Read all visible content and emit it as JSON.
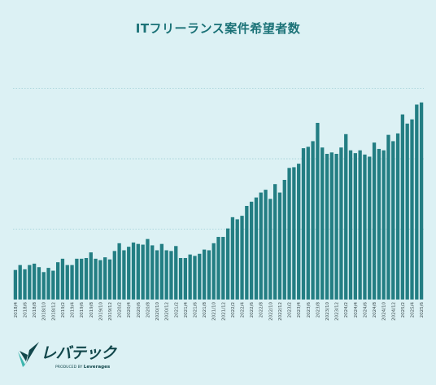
{
  "colors": {
    "background": "#dcf1f4",
    "bar": "#237e83",
    "title": "#1b7277",
    "grid": "#9ccdd3",
    "brand_dark": "#12474b",
    "brand_green": "#3db6ae"
  },
  "brand": {
    "name": "レバテック",
    "tagline_prefix": "PRODUCED BY",
    "tagline_company": "Leverages",
    "icon": "check-mark-logo-icon"
  },
  "chart_data": {
    "type": "bar",
    "title": "ITフリーランス案件希望者数",
    "xlabel": "",
    "ylabel": "",
    "ylim": [
      0,
      340
    ],
    "grid": true,
    "legend": "none",
    "x_tick_labels": [
      "2018/4",
      "2018/6",
      "2018/8",
      "2018/10",
      "2018/12",
      "2019/2",
      "2019/4",
      "2019/6",
      "2019/8",
      "2019/10",
      "2019/12",
      "2020/2",
      "2020/4",
      "2020/6",
      "2020/8",
      "2020/10",
      "2020/12",
      "2021/2",
      "2021/4",
      "2021/6",
      "2021/8",
      "2021/10",
      "2021/12",
      "2022/2",
      "2022/4",
      "2022/6",
      "2022/8",
      "2022/10",
      "2022/12",
      "2023/2",
      "2023/4",
      "2023/6",
      "2023/8",
      "2023/10",
      "2023/12",
      "2024/2",
      "2024/4",
      "2024/6",
      "2024/8",
      "2024/10",
      "2024/12",
      "2025/2",
      "2025/4",
      "2025/6"
    ],
    "categories": [
      "2018/4",
      "2018/5",
      "2018/6",
      "2018/7",
      "2018/8",
      "2018/9",
      "2018/10",
      "2018/11",
      "2018/12",
      "2019/1",
      "2019/2",
      "2019/3",
      "2019/4",
      "2019/5",
      "2019/6",
      "2019/7",
      "2019/8",
      "2019/9",
      "2019/10",
      "2019/11",
      "2019/12",
      "2020/1",
      "2020/2",
      "2020/3",
      "2020/4",
      "2020/5",
      "2020/6",
      "2020/7",
      "2020/8",
      "2020/9",
      "2020/10",
      "2020/11",
      "2020/12",
      "2021/1",
      "2021/2",
      "2021/3",
      "2021/4",
      "2021/5",
      "2021/6",
      "2021/7",
      "2021/8",
      "2021/9",
      "2021/10",
      "2021/11",
      "2021/12",
      "2022/1",
      "2022/2",
      "2022/3",
      "2022/4",
      "2022/5",
      "2022/6",
      "2022/7",
      "2022/8",
      "2022/9",
      "2022/10",
      "2022/11",
      "2022/12",
      "2023/1",
      "2023/2",
      "2023/3",
      "2023/4",
      "2023/5",
      "2023/6",
      "2023/7",
      "2023/8",
      "2023/9",
      "2023/10",
      "2023/11",
      "2023/12",
      "2024/1",
      "2024/2",
      "2024/3",
      "2024/4",
      "2024/5",
      "2024/6",
      "2024/7",
      "2024/8",
      "2024/9",
      "2024/10",
      "2024/11",
      "2024/12",
      "2025/1",
      "2025/2",
      "2025/3",
      "2025/4",
      "2025/5",
      "2025/6"
    ],
    "values": [
      42,
      49,
      43,
      49,
      51,
      46,
      39,
      45,
      41,
      53,
      58,
      49,
      49,
      58,
      58,
      59,
      67,
      58,
      56,
      60,
      57,
      69,
      80,
      70,
      75,
      81,
      79,
      78,
      86,
      77,
      70,
      79,
      70,
      69,
      76,
      59,
      59,
      64,
      62,
      65,
      71,
      70,
      80,
      89,
      89,
      101,
      117,
      114,
      119,
      133,
      139,
      145,
      152,
      156,
      143,
      164,
      152,
      170,
      187,
      188,
      193,
      215,
      217,
      225,
      251,
      216,
      207,
      209,
      207,
      216,
      235,
      212,
      208,
      212,
      206,
      203,
      223,
      214,
      212,
      234,
      225,
      236,
      263,
      250,
      256,
      277,
      280
    ]
  }
}
